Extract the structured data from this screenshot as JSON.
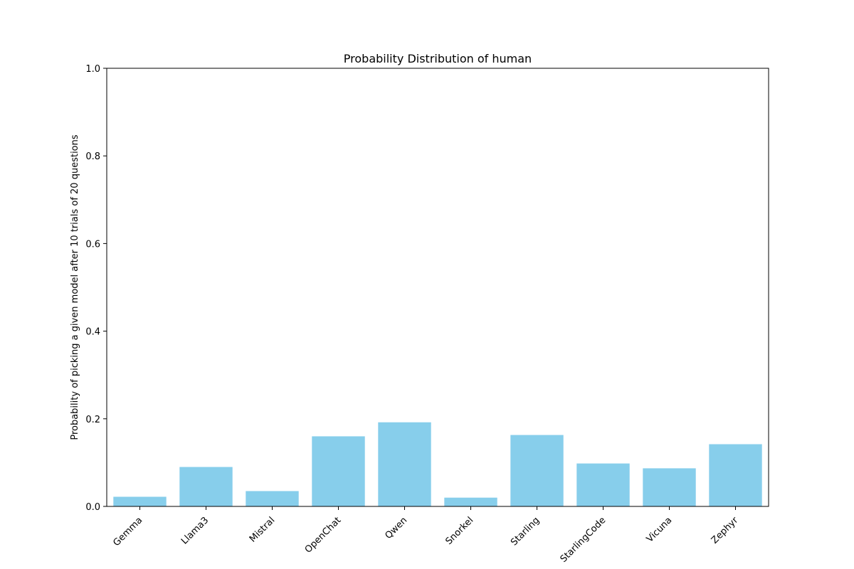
{
  "chart_data": {
    "type": "bar",
    "title": "Probability Distribution of human",
    "xlabel": "",
    "ylabel": "Probability of picking a given model after 10 trials of 20 questions",
    "categories": [
      "Gemma",
      "Llama3",
      "Mistral",
      "OpenChat",
      "Qwen",
      "Snorkel",
      "Starling",
      "StarlingCode",
      "Vicuna",
      "Zephyr"
    ],
    "values": [
      0.022,
      0.09,
      0.035,
      0.16,
      0.192,
      0.02,
      0.163,
      0.098,
      0.087,
      0.142
    ],
    "ylim": [
      0,
      1.0
    ],
    "yticks": [
      0.0,
      0.2,
      0.4,
      0.6,
      0.8,
      1.0
    ],
    "ytick_labels": [
      "0.0",
      "0.2",
      "0.4",
      "0.6",
      "0.8",
      "1.0"
    ],
    "grid": false,
    "legend": "none",
    "bar_color": "#87ceeb"
  }
}
